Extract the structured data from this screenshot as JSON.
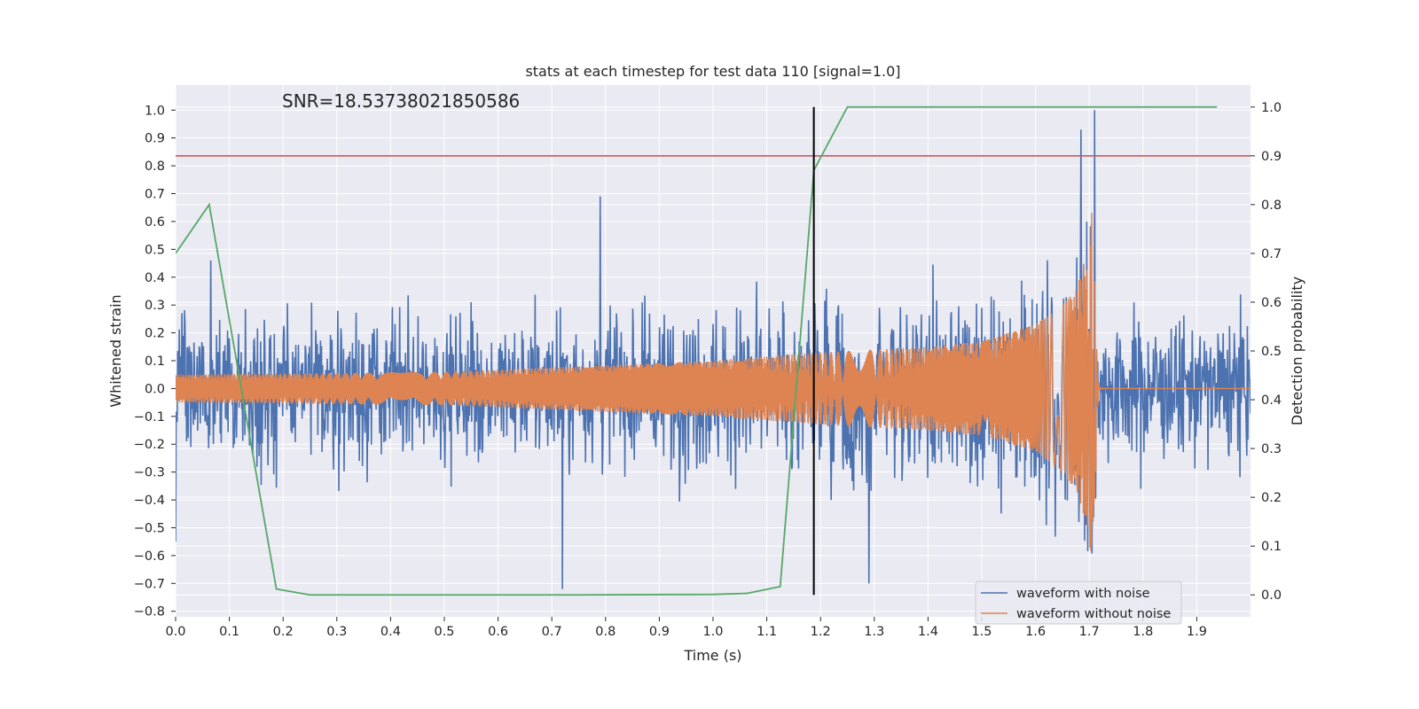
{
  "chart_data": {
    "type": "line",
    "title": "stats at each timestep for test data 110 [signal=1.0]",
    "annotation": "SNR=18.53738021850586",
    "xlabel": "Time (s)",
    "ylabel": "Whitened strain",
    "ylabel_right": "Detection probability",
    "xlim": [
      0.0,
      2.0
    ],
    "ylim": [
      -0.82,
      1.09
    ],
    "ylim_right": [
      -0.045,
      1.045
    ],
    "grid": true,
    "legend_placement": "lower-right",
    "x_ticks": [
      "0.0",
      "0.1",
      "0.2",
      "0.3",
      "0.4",
      "0.5",
      "0.6",
      "0.7",
      "0.8",
      "0.9",
      "1.0",
      "1.1",
      "1.2",
      "1.3",
      "1.4",
      "1.5",
      "1.6",
      "1.7",
      "1.8",
      "1.9"
    ],
    "x_tick_values": [
      0.0,
      0.1,
      0.2,
      0.3,
      0.4,
      0.5,
      0.6,
      0.7,
      0.8,
      0.9,
      1.0,
      1.1,
      1.2,
      1.3,
      1.4,
      1.5,
      1.6,
      1.7,
      1.8,
      1.9
    ],
    "y_ticks": [
      "1.0",
      "0.9",
      "0.8",
      "0.7",
      "0.6",
      "0.5",
      "0.4",
      "0.3",
      "0.2",
      "0.1",
      "0.0",
      "−0.1",
      "−0.2",
      "−0.3",
      "−0.4",
      "−0.5",
      "−0.6",
      "−0.7",
      "−0.8"
    ],
    "y_tick_values": [
      1.0,
      0.9,
      0.8,
      0.7,
      0.6,
      0.5,
      0.4,
      0.3,
      0.2,
      0.1,
      0.0,
      -0.1,
      -0.2,
      -0.3,
      -0.4,
      -0.5,
      -0.6,
      -0.7,
      -0.8
    ],
    "y_right_ticks": [
      "1.0",
      "0.9",
      "0.8",
      "0.7",
      "0.6",
      "0.5",
      "0.4",
      "0.3",
      "0.2",
      "0.1",
      "0.0"
    ],
    "y_right_tick_values": [
      1.0,
      0.9,
      0.8,
      0.7,
      0.6,
      0.5,
      0.4,
      0.3,
      0.2,
      0.1,
      0.0
    ],
    "series": [
      {
        "name": "waveform with noise",
        "color": "#4c72b0",
        "axis": "left",
        "description_of_shape": "dense noisy strain, amplitude about ±0.5, extremes ~0.93 and 1.0 near t=1.69–1.71, minima ~-0.72",
        "notable_points": [
          {
            "x": 0.0,
            "y": -0.55
          },
          {
            "x": 0.065,
            "y": 0.46
          },
          {
            "x": 0.72,
            "y": -0.72
          },
          {
            "x": 0.79,
            "y": 0.69
          },
          {
            "x": 1.29,
            "y": -0.7
          },
          {
            "x": 1.685,
            "y": 0.93
          },
          {
            "x": 1.71,
            "y": 1.0
          }
        ]
      },
      {
        "name": "waveform without noise",
        "color": "#dd8452",
        "axis": "left",
        "description_of_shape": "chirp: sinusoid with growing amplitude and frequency, merger at ~1.71 s then ringdown to zero",
        "envelope": [
          {
            "x": 0.0,
            "y": 0.05
          },
          {
            "x": 0.5,
            "y": 0.06
          },
          {
            "x": 1.0,
            "y": 0.1
          },
          {
            "x": 1.2,
            "y": 0.13
          },
          {
            "x": 1.4,
            "y": 0.15
          },
          {
            "x": 1.5,
            "y": 0.17
          },
          {
            "x": 1.6,
            "y": 0.23
          },
          {
            "x": 1.65,
            "y": 0.3
          },
          {
            "x": 1.68,
            "y": 0.38
          },
          {
            "x": 1.7,
            "y": 0.55
          },
          {
            "x": 1.708,
            "y": 0.7
          },
          {
            "x": 1.72,
            "y": 0.05
          },
          {
            "x": 1.75,
            "y": 0.0
          },
          {
            "x": 2.0,
            "y": 0.0
          }
        ]
      },
      {
        "name": "detection probability",
        "color": "#55a868",
        "axis": "right",
        "x": [
          0.0,
          0.0625,
          0.1875,
          0.25,
          0.75,
          1.0,
          1.0625,
          1.125,
          1.1875,
          1.25,
          1.9375
        ],
        "y": [
          0.7,
          0.8,
          0.012,
          0.0,
          0.0,
          0.001,
          0.003,
          0.017,
          0.87,
          1.0,
          1.0
        ]
      }
    ],
    "threshold_line": {
      "axis": "right",
      "y": 0.9,
      "color": "#c44e52"
    },
    "vertical_marker": {
      "x": 1.1875,
      "y_from": 0.0,
      "y_to": 1.0,
      "axis": "right",
      "color": "#000000"
    },
    "legend": [
      "waveform with noise",
      "waveform without noise"
    ]
  }
}
